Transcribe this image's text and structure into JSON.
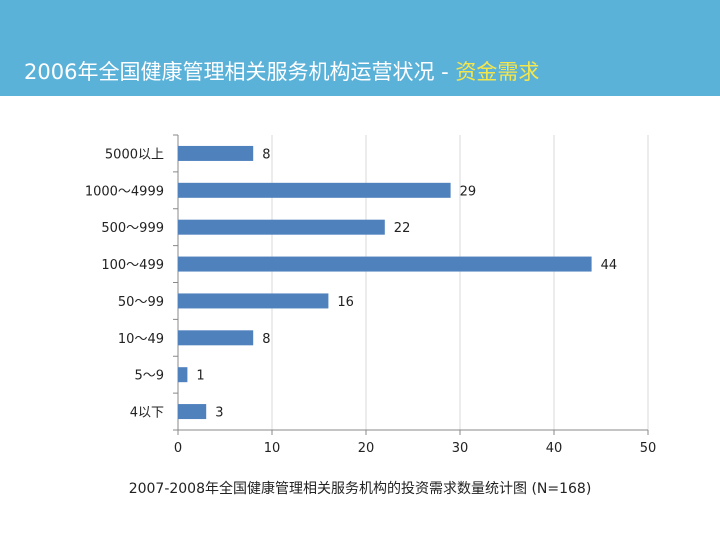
{
  "header": {
    "title_main": "2006年全国健康管理相关服务机构运营状况 - ",
    "title_accent": "资金需求"
  },
  "caption": "2007-2008年全国健康管理相关服务机构的投资需求数量统计图 (N=168)",
  "colors": {
    "header_bg": "#5bb2d9",
    "accent": "#f5e64a",
    "bar": "#4f81bd",
    "grid": "#d9d9d9"
  },
  "chart_data": {
    "type": "bar",
    "orientation": "horizontal",
    "categories": [
      "5000以上",
      "1000～4999",
      "500～999",
      "100～499",
      "50～99",
      "10～49",
      "5～9",
      "4以下"
    ],
    "values": [
      8,
      29,
      22,
      44,
      16,
      8,
      1,
      3
    ],
    "xlim": [
      0,
      50
    ],
    "xticks": [
      0,
      10,
      20,
      30,
      40,
      50
    ],
    "grid": true,
    "legend": "none"
  }
}
